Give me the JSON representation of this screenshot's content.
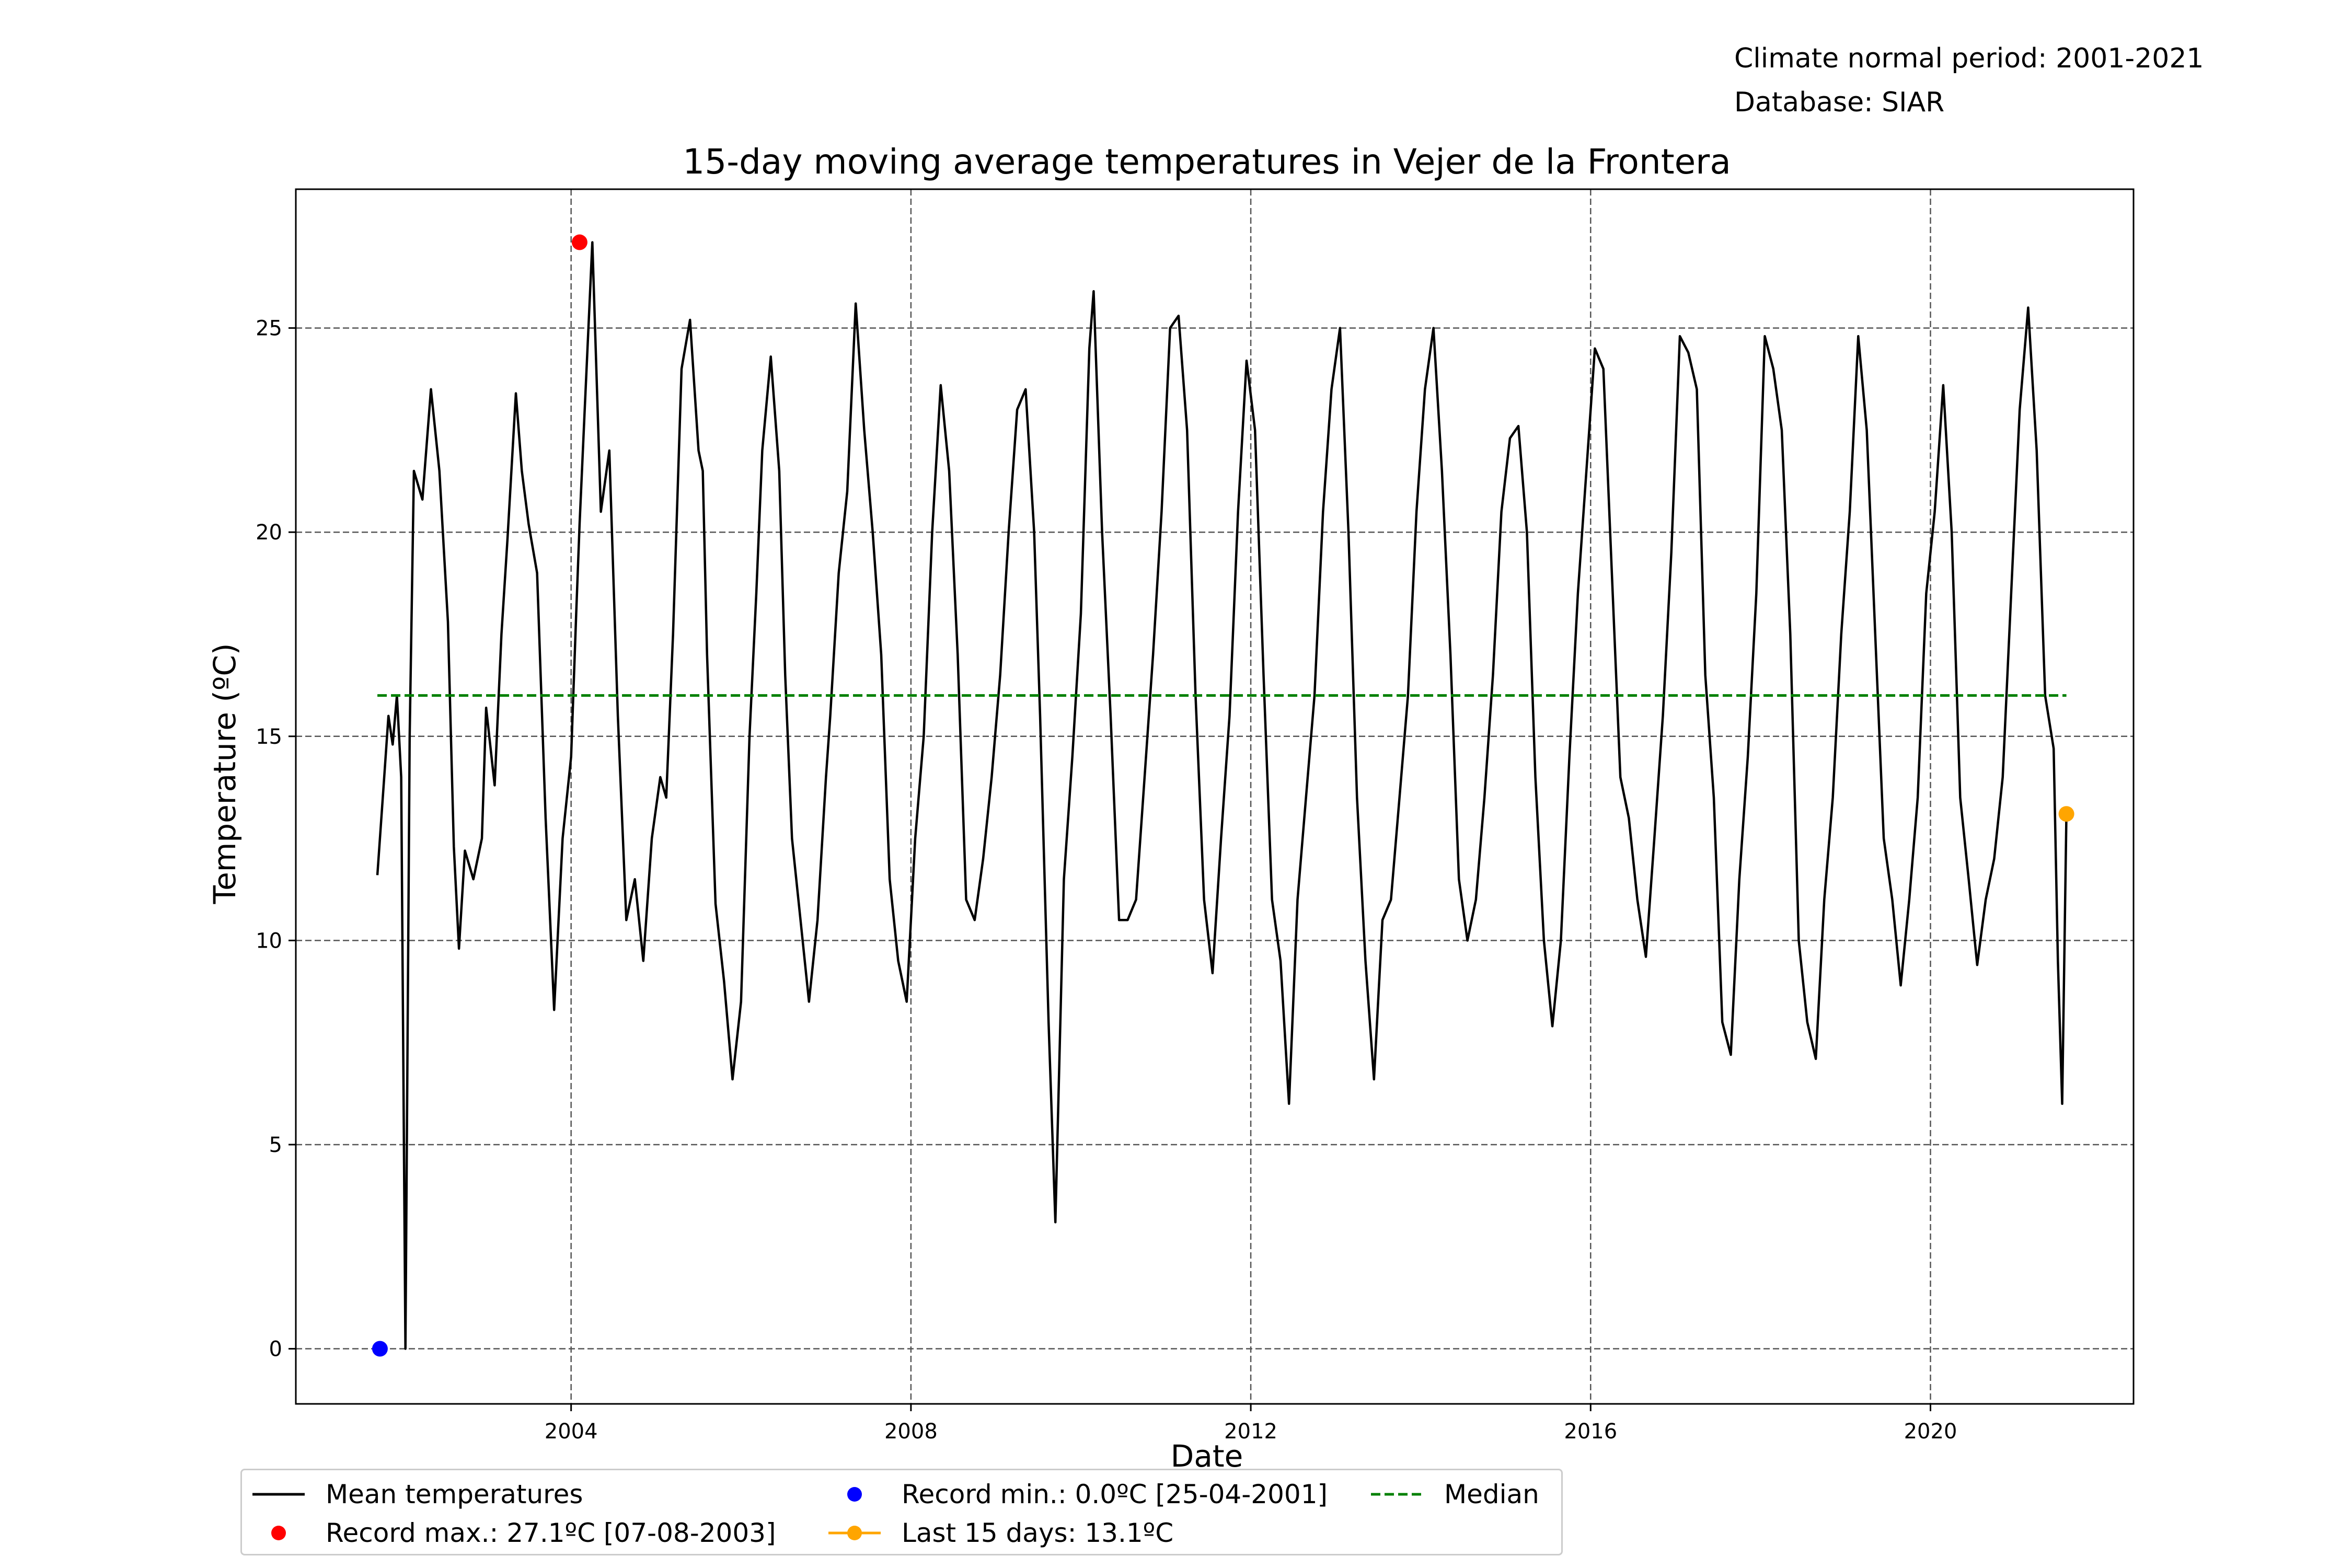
{
  "info": {
    "period": "Climate normal period: 2001-2021",
    "database": "Database: SIAR"
  },
  "chart_data": {
    "type": "line",
    "title": "15-day moving average temperatures in Vejer de la Frontera",
    "xlabel": "Date",
    "ylabel": "Temperature (ºC)",
    "xlim": [
      2000.76,
      2022.39
    ],
    "ylim": [
      -1.35,
      28.4
    ],
    "x_ticks": [
      2004,
      2008,
      2012,
      2016,
      2020
    ],
    "y_ticks": [
      0,
      5,
      10,
      15,
      20,
      25
    ],
    "grid": true,
    "legend_position": "bottom-center",
    "colors": {
      "mean": "#000000",
      "record_max": "#ff0000",
      "record_min": "#0000ff",
      "last": "#ffa500",
      "median": "#008000",
      "grid": "#555555"
    },
    "median": 16.0,
    "record_max": {
      "x": 2004.1,
      "y": 27.1
    },
    "record_min": {
      "x": 2001.75,
      "y": 0.0
    },
    "last_15_days": {
      "x": 2021.6,
      "y": 13.1
    },
    "series": [
      {
        "name": "Mean temperatures",
        "x": [
          2001.72,
          2001.8,
          2001.85,
          2001.9,
          2001.95,
          2002.0,
          2002.05,
          2002.1,
          2002.15,
          2002.25,
          2002.35,
          2002.45,
          2002.55,
          2002.62,
          2002.68,
          2002.75,
          2002.85,
          2002.95,
          2003.0,
          2003.1,
          2003.18,
          2003.25,
          2003.35,
          2003.42,
          2003.5,
          2003.6,
          2003.7,
          2003.8,
          2003.9,
          2004.0,
          2004.06,
          2004.1,
          2004.16,
          2004.25,
          2004.35,
          2004.45,
          2004.55,
          2004.65,
          2004.75,
          2004.85,
          2004.95,
          2005.05,
          2005.12,
          2005.2,
          2005.3,
          2005.4,
          2005.5,
          2005.55,
          2005.6,
          2005.7,
          2005.8,
          2005.9,
          2006.0,
          2006.1,
          2006.18,
          2006.25,
          2006.35,
          2006.45,
          2006.52,
          2006.6,
          2006.7,
          2006.8,
          2006.9,
          2007.0,
          2007.05,
          2007.15,
          2007.25,
          2007.35,
          2007.45,
          2007.55,
          2007.65,
          2007.75,
          2007.85,
          2007.95,
          2008.05,
          2008.15,
          2008.25,
          2008.35,
          2008.45,
          2008.55,
          2008.65,
          2008.75,
          2008.85,
          2008.95,
          2009.05,
          2009.15,
          2009.25,
          2009.35,
          2009.45,
          2009.52,
          2009.58,
          2009.62,
          2009.7,
          2009.8,
          2009.9,
          2010.0,
          2010.1,
          2010.15,
          2010.25,
          2010.35,
          2010.45,
          2010.55,
          2010.65,
          2010.75,
          2010.85,
          2010.95,
          2011.05,
          2011.15,
          2011.25,
          2011.35,
          2011.45,
          2011.55,
          2011.65,
          2011.75,
          2011.85,
          2011.95,
          2012.05,
          2012.15,
          2012.25,
          2012.35,
          2012.45,
          2012.55,
          2012.65,
          2012.75,
          2012.85,
          2012.95,
          2013.05,
          2013.15,
          2013.25,
          2013.35,
          2013.45,
          2013.55,
          2013.65,
          2013.75,
          2013.85,
          2013.95,
          2014.05,
          2014.15,
          2014.25,
          2014.35,
          2014.45,
          2014.55,
          2014.65,
          2014.75,
          2014.85,
          2014.95,
          2015.05,
          2015.15,
          2015.25,
          2015.35,
          2015.45,
          2015.55,
          2015.65,
          2015.75,
          2015.85,
          2015.95,
          2016.05,
          2016.15,
          2016.25,
          2016.35,
          2016.45,
          2016.55,
          2016.65,
          2016.75,
          2016.85,
          2016.95,
          2017.05,
          2017.15,
          2017.25,
          2017.35,
          2017.45,
          2017.55,
          2017.65,
          2017.75,
          2017.85,
          2017.95,
          2018.05,
          2018.15,
          2018.25,
          2018.35,
          2018.45,
          2018.55,
          2018.65,
          2018.75,
          2018.85,
          2018.95,
          2019.05,
          2019.15,
          2019.25,
          2019.35,
          2019.45,
          2019.55,
          2019.65,
          2019.75,
          2019.85,
          2019.95,
          2020.05,
          2020.15,
          2020.25,
          2020.35,
          2020.45,
          2020.55,
          2020.65,
          2020.75,
          2020.85,
          2020.95,
          2021.05,
          2021.15,
          2021.25,
          2021.35,
          2021.45,
          2021.5,
          2021.55,
          2021.6
        ],
        "y": [
          11.6,
          14.0,
          15.5,
          14.8,
          16.0,
          14.0,
          0.0,
          15.0,
          21.5,
          20.8,
          23.5,
          21.5,
          17.8,
          12.3,
          9.8,
          12.2,
          11.5,
          12.5,
          15.7,
          13.8,
          17.5,
          19.8,
          23.4,
          21.5,
          20.2,
          19.0,
          13.0,
          8.3,
          12.5,
          14.5,
          18.0,
          20.2,
          23.0,
          27.1,
          20.5,
          22.0,
          15.5,
          10.5,
          11.5,
          9.5,
          12.5,
          14.0,
          13.5,
          17.5,
          24.0,
          25.2,
          22.0,
          21.5,
          17.0,
          10.9,
          9.0,
          6.6,
          8.5,
          15.0,
          18.5,
          22.0,
          24.3,
          21.5,
          16.5,
          12.5,
          10.5,
          8.5,
          10.5,
          14.0,
          15.5,
          19.0,
          21.0,
          25.6,
          22.5,
          20.0,
          17.0,
          11.5,
          9.5,
          8.5,
          12.5,
          15.0,
          20.0,
          23.6,
          21.5,
          17.0,
          11.0,
          10.5,
          12.0,
          14.0,
          16.5,
          20.0,
          23.0,
          23.5,
          20.0,
          15.5,
          11.0,
          8.0,
          3.1,
          11.5,
          14.5,
          18.0,
          24.5,
          25.9,
          20.0,
          15.5,
          10.5,
          10.5,
          11.0,
          14.0,
          17.0,
          20.5,
          25.0,
          25.3,
          22.5,
          16.0,
          11.0,
          9.2,
          12.5,
          15.5,
          20.5,
          24.2,
          22.5,
          16.5,
          11.0,
          9.5,
          6.0,
          11.0,
          13.5,
          16.0,
          20.5,
          23.5,
          25.0,
          20.0,
          13.5,
          9.5,
          6.6,
          10.5,
          11.0,
          13.5,
          16.0,
          20.5,
          23.5,
          25.0,
          21.5,
          17.0,
          11.5,
          10.0,
          11.0,
          13.5,
          16.5,
          20.5,
          22.3,
          22.6,
          20.0,
          14.0,
          10.0,
          7.9,
          10.0,
          14.5,
          18.5,
          21.5,
          24.5,
          24.0,
          19.0,
          14.0,
          13.0,
          11.0,
          9.6,
          12.5,
          15.5,
          19.5,
          24.8,
          24.4,
          23.5,
          16.5,
          13.5,
          8.0,
          7.2,
          11.5,
          14.5,
          18.5,
          24.8,
          24.0,
          22.5,
          17.5,
          10.0,
          8.0,
          7.1,
          11.0,
          13.5,
          17.5,
          20.5,
          24.8,
          22.5,
          17.5,
          12.5,
          11.0,
          8.9,
          11.0,
          13.5,
          18.5,
          20.5,
          23.6,
          20.0,
          13.5,
          11.5,
          9.4,
          11.0,
          12.0,
          14.0,
          18.5,
          23.0,
          25.5,
          22.0,
          16.0,
          14.7,
          9.5,
          6.0,
          13.1
        ]
      },
      {
        "name": "Median",
        "x": [
          2001.72,
          2021.6
        ],
        "y": [
          16.0,
          16.0
        ]
      }
    ],
    "legend": [
      {
        "key": "mean",
        "label": "Mean temperatures",
        "marker": "line"
      },
      {
        "key": "record_max",
        "label": "Record max.: 27.1ºC [07-08-2003]",
        "marker": "dot"
      },
      {
        "key": "record_min",
        "label": "Record min.: 0.0ºC [25-04-2001]",
        "marker": "dot"
      },
      {
        "key": "last",
        "label": "Last 15 days: 13.1ºC",
        "marker": "line-dot"
      },
      {
        "key": "median",
        "label": "Median",
        "marker": "dashed"
      }
    ]
  }
}
